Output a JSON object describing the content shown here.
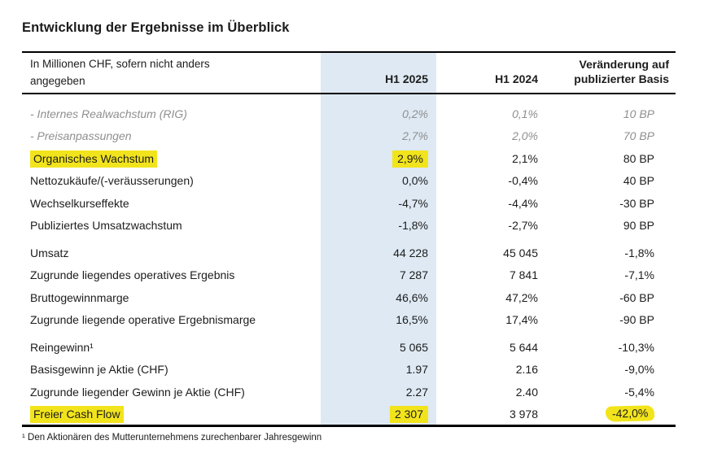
{
  "title": "Entwicklung der Ergebnisse im Überblick",
  "colors": {
    "column_band": "#dee9f3",
    "highlight_yellow": "#f2e41c",
    "muted_text": "#8f8f8f"
  },
  "table": {
    "header": {
      "unit_label_line1": "In Millionen CHF, sofern nicht anders",
      "unit_label_line2": "angegeben",
      "col_2025": "H1 2025",
      "col_2024": "H1 2024",
      "col_change_line1": "Veränderung auf",
      "col_change_line2": "publizierter Basis"
    },
    "rows": [
      {
        "label": "- Internes Realwachstum (RIG)",
        "h1_2025": "0,2%",
        "h1_2024": "0,1%",
        "change": "10 BP"
      },
      {
        "label": "- Preisanpassungen",
        "h1_2025": "2,7%",
        "h1_2024": "2,0%",
        "change": "70 BP"
      },
      {
        "label": "Organisches Wachstum",
        "h1_2025": "2,9%",
        "h1_2024": "2,1%",
        "change": "80 BP"
      },
      {
        "label": "Nettozukäufe/(-veräusserungen)",
        "h1_2025": "0,0%",
        "h1_2024": "-0,4%",
        "change": "40 BP"
      },
      {
        "label": "Wechselkurseffekte",
        "h1_2025": "-4,7%",
        "h1_2024": "-4,4%",
        "change": "-30 BP"
      },
      {
        "label": "Publiziertes Umsatzwachstum",
        "h1_2025": "-1,8%",
        "h1_2024": "-2,7%",
        "change": "90 BP"
      },
      {
        "label": "Umsatz",
        "h1_2025": "44 228",
        "h1_2024": "45 045",
        "change": "-1,8%"
      },
      {
        "label": "Zugrunde liegendes operatives Ergebnis",
        "h1_2025": "7 287",
        "h1_2024": "7 841",
        "change": "-7,1%"
      },
      {
        "label": "Bruttogewinnmarge",
        "h1_2025": "46,6%",
        "h1_2024": "47,2%",
        "change": "-60 BP"
      },
      {
        "label": "Zugrunde liegende operative Ergebnismarge",
        "h1_2025": "16,5%",
        "h1_2024": "17,4%",
        "change": "-90 BP"
      },
      {
        "label": "Reingewinn¹",
        "h1_2025": "5 065",
        "h1_2024": "5 644",
        "change": "-10,3%"
      },
      {
        "label": "Basisgewinn je Aktie (CHF)",
        "h1_2025": "1.97",
        "h1_2024": "2.16",
        "change": "-9,0%"
      },
      {
        "label": "Zugrunde liegender Gewinn je Aktie (CHF)",
        "h1_2025": "2.27",
        "h1_2024": "2.40",
        "change": "-5,4%"
      },
      {
        "label": "Freier Cash Flow",
        "h1_2025": "2 307",
        "h1_2024": "3 978",
        "change": "-42,0%"
      }
    ]
  },
  "footnote": "¹ Den Aktionären des Mutterunternehmens zurechenbarer Jahresgewinn"
}
